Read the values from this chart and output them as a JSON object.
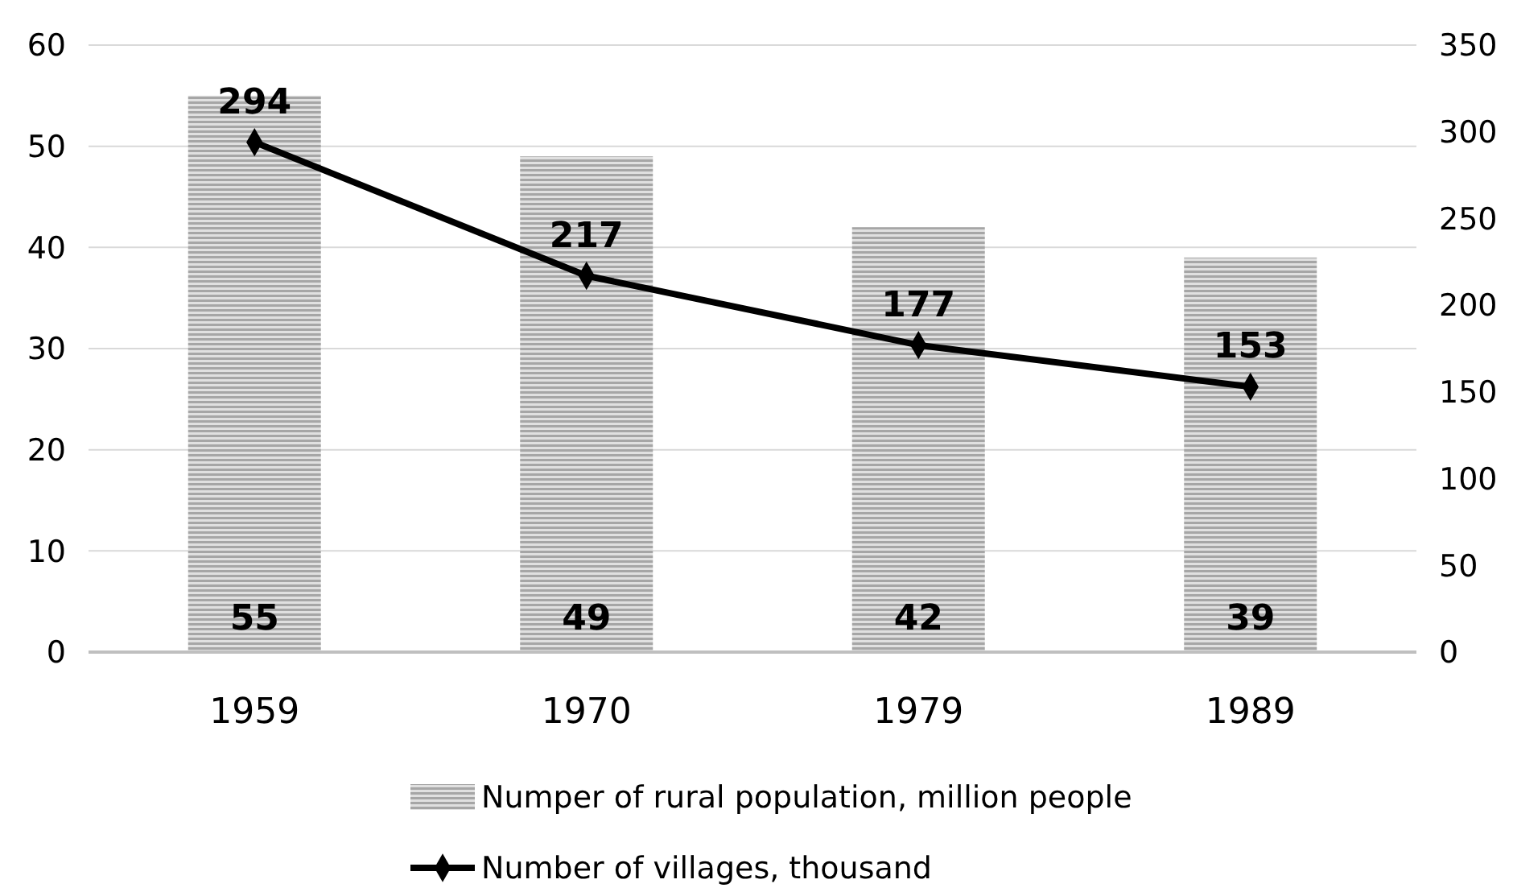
{
  "chart_data": {
    "type": "bar",
    "categories": [
      "1959",
      "1970",
      "1979",
      "1989"
    ],
    "series": [
      {
        "name": "Numper of rural population, million people",
        "color": "#a6a6a6",
        "values": [
          55,
          49,
          42,
          39
        ]
      },
      {
        "name": "Number of villages, thousand",
        "type": "line",
        "axis": "y2",
        "color": "#000000",
        "values": [
          294,
          217,
          177,
          153
        ],
        "marker": "diamond"
      }
    ],
    "ylim": [
      0,
      60
    ],
    "yticks": [
      0,
      10,
      20,
      30,
      40,
      50,
      60
    ],
    "y2lim": [
      0,
      350
    ],
    "y2ticks": [
      0,
      50,
      100,
      150,
      200,
      250,
      300,
      350
    ],
    "grid": "y",
    "legend": "bottom",
    "data_labels": true
  }
}
